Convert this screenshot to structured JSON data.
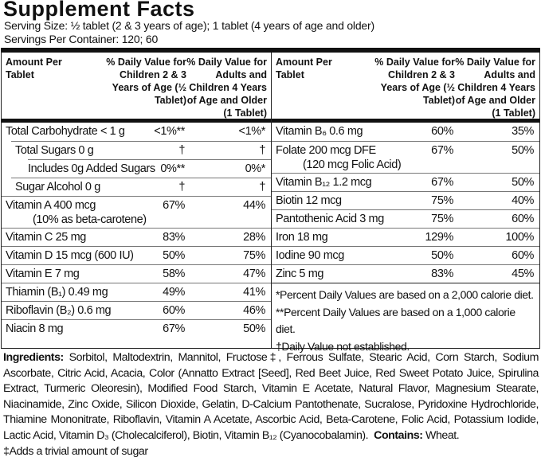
{
  "title": "Supplement Facts",
  "serving_size": "Serving Size: ½ tablet (2 & 3 years of age); 1 tablet (4 years of age and older)",
  "servings_per_container": "Servings Per Container: 120; 60",
  "header": {
    "amount": "Amount Per Tablet",
    "dv_children": "% Daily Value for Children 2 & 3 Years of Age (½ Tablet)",
    "dv_adults": "% Daily Value for Adults and Children 4 Years of Age and Older (1 Tablet)"
  },
  "left_rows": [
    {
      "name": "Total Carbohydrate < 1 g",
      "child": "<1%**",
      "adult": "<1%*"
    },
    {
      "name": "Total Sugars 0 g",
      "child": "†",
      "adult": "†"
    },
    {
      "name": "Includes 0g Added Sugars",
      "child": "0%**",
      "adult": "0%*"
    },
    {
      "name": "Sugar Alcohol 0 g",
      "child": "†",
      "adult": "†"
    },
    {
      "name": "Vitamin A 400 mcg",
      "name2": "(10% as beta-carotene)",
      "child": "67%",
      "adult": "44%"
    },
    {
      "name": "Vitamin C 25 mg",
      "child": "83%",
      "adult": "28%"
    },
    {
      "name": "Vitamin D 15 mcg (600 IU)",
      "child": "50%",
      "adult": "75%"
    },
    {
      "name": "Vitamin E 7 mg",
      "child": "58%",
      "adult": "47%"
    },
    {
      "name": "Thiamin (B₁) 0.49 mg",
      "child": "49%",
      "adult": "41%"
    },
    {
      "name": "Riboflavin (B₂) 0.6 mg",
      "child": "60%",
      "adult": "46%"
    },
    {
      "name": "Niacin 8 mg",
      "child": "67%",
      "adult": "50%"
    }
  ],
  "right_rows": [
    {
      "name": "Vitamin B₆ 0.6 mg",
      "child": "60%",
      "adult": "35%"
    },
    {
      "name": "Folate 200 mcg DFE",
      "name2": "(120 mcg Folic Acid)",
      "child": "67%",
      "adult": "50%"
    },
    {
      "name": "Vitamin B₁₂ 1.2 mcg",
      "child": "67%",
      "adult": "50%"
    },
    {
      "name": "Biotin 12 mcg",
      "child": "75%",
      "adult": "40%"
    },
    {
      "name": "Pantothenic Acid 3 mg",
      "child": "75%",
      "adult": "60%"
    },
    {
      "name": "Iron 18 mg",
      "child": "129%",
      "adult": "100%"
    },
    {
      "name": "Iodine 90 mcg",
      "child": "50%",
      "adult": "60%"
    },
    {
      "name": "Zinc 5 mg",
      "child": "83%",
      "adult": "45%"
    }
  ],
  "footnotes": [
    "*Percent Daily Values are based on a 2,000 calorie diet.",
    "**Percent Daily Values are based on a 1,000 calorie diet.",
    "†Daily Value not established."
  ],
  "ingredients_label": "Ingredients:",
  "ingredients": "Sorbitol, Maltodextrin, Mannitol, Fructose‡, Ferrous Sulfate, Stearic Acid, Corn Starch, Sodium Ascorbate, Citric Acid, Acacia, Color (Annatto Extract [Seed], Red Beet Juice, Red Sweet Potato Juice, Spirulina Extract, Turmeric Oleoresin), Modified Food Starch, Vitamin E Acetate, Natural Flavor, Magnesium Stearate, Niacinamide, Zinc Oxide, Silicon Dioxide, Gelatin, D-Calcium Pantothenate, Sucralose, Pyridoxine Hydrochloride, Thiamine Mononitrate, Riboflavin, Vitamin A Acetate, Ascorbic Acid, Beta-Carotene, Folic Acid, Potassium Iodide, Lactic Acid, Vitamin D₃ (Cholecalciferol), Biotin, Vitamin B₁₂ (Cyanocobalamin).",
  "contains_label": "Contains:",
  "contains": "Wheat.",
  "trivial_note": "‡Adds a trivial amount of sugar"
}
